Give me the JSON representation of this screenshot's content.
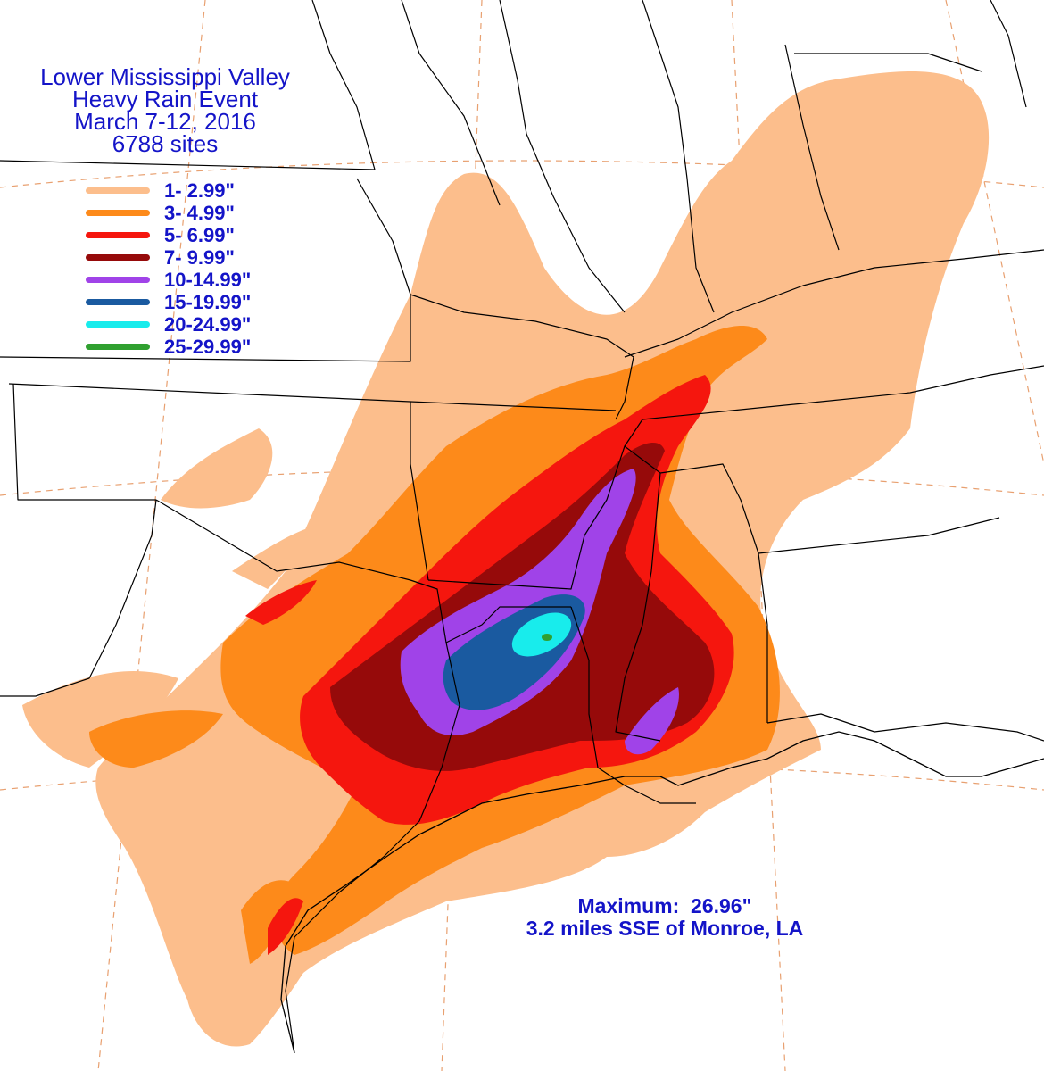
{
  "title": {
    "line1": "Lower Mississippi Valley",
    "line2": "Heavy Rain Event",
    "line3": "March 7-12, 2016",
    "line4": "6788 sites"
  },
  "legend": [
    {
      "label": "1- 2.99\"",
      "color": "#fcbe8c"
    },
    {
      "label": "3- 4.99\"",
      "color": "#fd8a1a"
    },
    {
      "label": "5- 6.99\"",
      "color": "#f5160e"
    },
    {
      "label": "7- 9.99\"",
      "color": "#960a0a"
    },
    {
      "label": "10-14.99\"",
      "color": "#a043e8"
    },
    {
      "label": "15-19.99\"",
      "color": "#1a5aa0"
    },
    {
      "label": "20-24.99\"",
      "color": "#18ecec"
    },
    {
      "label": "25-29.99\"",
      "color": "#30a030"
    }
  ],
  "maximum": {
    "line1": "Maximum:  26.96\"",
    "line2": "3.2 miles SSE of Monroe, LA"
  },
  "colors": {
    "text": "#1414c8",
    "borders": "#000000",
    "graticule": "#e8a070",
    "background": "#ffffff"
  }
}
